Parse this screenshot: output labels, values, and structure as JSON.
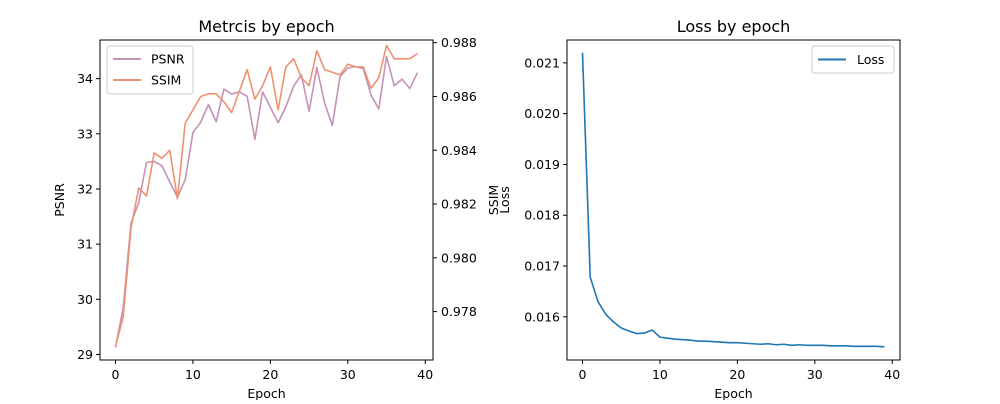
{
  "chart_data": [
    {
      "type": "line",
      "title": "Metrcis by epoch",
      "xlabel": "Epoch",
      "ylabel": "PSNR",
      "y2label": "SSIM",
      "xlim": [
        -2,
        41
      ],
      "ylim": [
        28.9,
        34.7
      ],
      "y2lim": [
        0.9762,
        0.9881
      ],
      "xticks": [
        0,
        10,
        20,
        30,
        40
      ],
      "yticks": [
        29,
        30,
        31,
        32,
        33,
        34
      ],
      "y2ticks": [
        0.978,
        0.98,
        0.982,
        0.984,
        0.986,
        0.988
      ],
      "grid": false,
      "legend": "upper left",
      "x": [
        0,
        1,
        2,
        3,
        4,
        5,
        6,
        7,
        8,
        9,
        10,
        11,
        12,
        13,
        14,
        15,
        16,
        17,
        18,
        19,
        20,
        21,
        22,
        23,
        24,
        25,
        26,
        27,
        28,
        29,
        30,
        31,
        32,
        33,
        34,
        35,
        36,
        37,
        38,
        39
      ],
      "series": [
        {
          "name": "PSNR",
          "axis": "left",
          "color": "#c492b7",
          "values": [
            29.13,
            29.85,
            31.38,
            31.75,
            32.48,
            32.5,
            32.42,
            32.13,
            31.85,
            32.17,
            33.02,
            33.21,
            33.53,
            33.22,
            33.81,
            33.72,
            33.76,
            33.68,
            32.9,
            33.76,
            33.48,
            33.2,
            33.49,
            33.86,
            34.07,
            33.41,
            34.2,
            33.56,
            33.15,
            34.04,
            34.19,
            34.22,
            34.18,
            33.7,
            33.45,
            34.4,
            33.87,
            33.99,
            33.82,
            34.11
          ]
        },
        {
          "name": "SSIM",
          "axis": "right",
          "color": "#ef9171",
          "values": [
            0.9767,
            0.9778,
            0.9811,
            0.9826,
            0.9823,
            0.9839,
            0.9837,
            0.984,
            0.9822,
            0.985,
            0.9855,
            0.986,
            0.9861,
            0.9861,
            0.9858,
            0.9854,
            0.9862,
            0.987,
            0.9859,
            0.9864,
            0.9871,
            0.9855,
            0.9871,
            0.9874,
            0.9867,
            0.9864,
            0.9877,
            0.987,
            0.9869,
            0.9868,
            0.9872,
            0.9871,
            0.9871,
            0.9863,
            0.9867,
            0.9879,
            0.9874,
            0.9874,
            0.9874,
            0.9876
          ]
        }
      ]
    },
    {
      "type": "line",
      "title": "Loss by epoch",
      "xlabel": "Epoch",
      "ylabel": "Loss",
      "xlim": [
        -2,
        41
      ],
      "ylim": [
        0.01515,
        0.02145
      ],
      "xticks": [
        0,
        10,
        20,
        30,
        40
      ],
      "yticks": [
        0.016,
        0.017,
        0.018,
        0.019,
        0.02,
        0.021
      ],
      "grid": false,
      "legend": "upper right",
      "x": [
        0,
        1,
        2,
        3,
        4,
        5,
        6,
        7,
        8,
        9,
        10,
        11,
        12,
        13,
        14,
        15,
        16,
        17,
        18,
        19,
        20,
        21,
        22,
        23,
        24,
        25,
        26,
        27,
        28,
        29,
        30,
        31,
        32,
        33,
        34,
        35,
        36,
        37,
        38,
        39
      ],
      "series": [
        {
          "name": "Loss",
          "color": "#1f77b4",
          "values": [
            0.0212,
            0.01678,
            0.0163,
            0.01605,
            0.0159,
            0.01578,
            0.01572,
            0.01567,
            0.01568,
            0.01574,
            0.0156,
            0.01558,
            0.01556,
            0.01555,
            0.01554,
            0.01552,
            0.01552,
            0.01551,
            0.0155,
            0.01549,
            0.01549,
            0.01548,
            0.01547,
            0.01546,
            0.01547,
            0.01545,
            0.01546,
            0.01544,
            0.01545,
            0.01544,
            0.01544,
            0.01544,
            0.01543,
            0.01543,
            0.01543,
            0.01542,
            0.01542,
            0.01542,
            0.01542,
            0.01541
          ]
        }
      ]
    }
  ]
}
